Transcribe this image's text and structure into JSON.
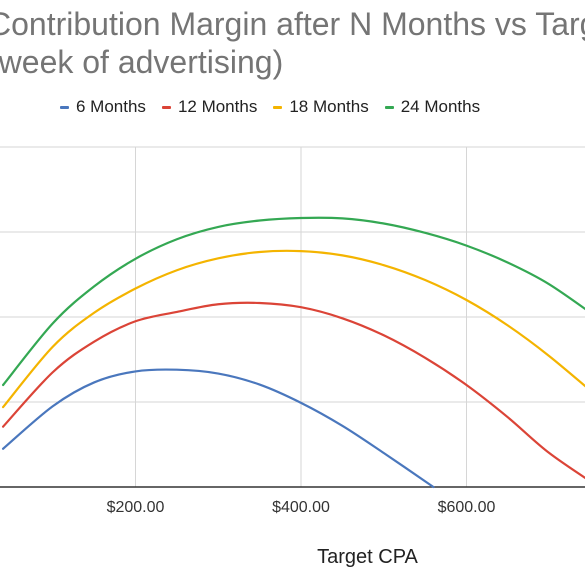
{
  "chart_data": {
    "type": "line",
    "title_line1": "Contribution Margin after N Months vs Targ",
    "title_line2": "(week of advertising)",
    "xlabel": "Target CPA",
    "ylabel": "",
    "x_ticks": [
      {
        "value": 200,
        "label": "$200.00"
      },
      {
        "value": 400,
        "label": "$400.00"
      },
      {
        "value": 600,
        "label": "$600.00"
      }
    ],
    "grid": true,
    "legend": "top",
    "series": [
      {
        "name": "6 Months",
        "color": "#4a77bd",
        "x": [
          40,
          100,
          150,
          200,
          250,
          300,
          350,
          400,
          450,
          500,
          560
        ],
        "y": [
          0.9,
          1.9,
          2.46,
          2.72,
          2.76,
          2.67,
          2.41,
          1.98,
          1.44,
          0.8,
          0.0
        ]
      },
      {
        "name": "12 Months",
        "color": "#db4437",
        "x": [
          40,
          100,
          150,
          200,
          250,
          300,
          350,
          400,
          450,
          500,
          550,
          600,
          650,
          700,
          760
        ],
        "y": [
          1.42,
          2.7,
          3.42,
          3.9,
          4.12,
          4.3,
          4.33,
          4.23,
          3.97,
          3.57,
          3.04,
          2.4,
          1.64,
          0.8,
          0.0
        ]
      },
      {
        "name": "18 Months",
        "color": "#f4b400",
        "x": [
          40,
          100,
          150,
          200,
          250,
          300,
          350,
          400,
          450,
          500,
          550,
          600,
          650,
          700,
          760
        ],
        "y": [
          1.88,
          3.3,
          4.1,
          4.67,
          5.1,
          5.38,
          5.53,
          5.55,
          5.45,
          5.22,
          4.87,
          4.4,
          3.8,
          3.08,
          2.1
        ]
      },
      {
        "name": "24 Months",
        "color": "#34a853",
        "x": [
          40,
          100,
          150,
          200,
          250,
          300,
          350,
          400,
          450,
          500,
          550,
          600,
          650,
          700,
          760
        ],
        "y": [
          2.4,
          3.85,
          4.72,
          5.37,
          5.83,
          6.12,
          6.27,
          6.33,
          6.32,
          6.2,
          5.98,
          5.68,
          5.28,
          4.77,
          3.96
        ]
      }
    ]
  }
}
